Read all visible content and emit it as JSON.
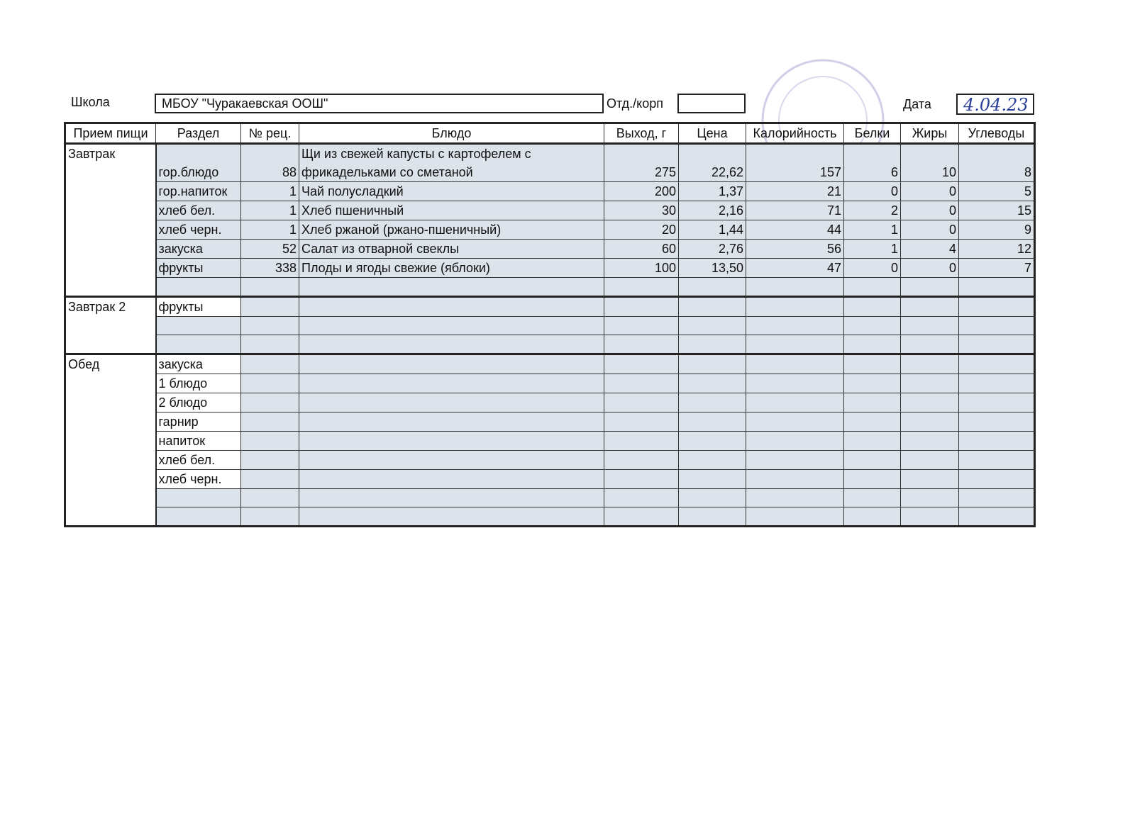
{
  "header": {
    "school_label": "Школа",
    "school": "МБОУ \"Чуракаевская ООШ\"",
    "branch_label": "Отд./корп",
    "date_label": "Дата",
    "date": "4.04.23"
  },
  "table": {
    "columns": [
      "Прием пищи",
      "Раздел",
      "№ рец.",
      "Блюдо",
      "Выход, г",
      "Цена",
      "Калорийность",
      "Белки",
      "Жиры",
      "Углеводы"
    ],
    "groups": [
      {
        "meal": "Завтрак",
        "rows": [
          [
            "гор.блюдо",
            "88",
            "Щи из свежей капусты с картофелем с фрикадельками со сметаной",
            "275",
            "22,62",
            "157",
            "6",
            "10",
            "8"
          ],
          [
            "гор.напиток",
            "1",
            "Чай полусладкий",
            "200",
            "1,37",
            "21",
            "0",
            "0",
            "5"
          ],
          [
            "хлеб бел.",
            "1",
            "Хлеб пшеничный",
            "30",
            "2,16",
            "71",
            "2",
            "0",
            "15"
          ],
          [
            "хлеб черн.",
            "1",
            "Хлеб ржаной (ржано-пшеничный)",
            "20",
            "1,44",
            "44",
            "1",
            "0",
            "9"
          ],
          [
            "закуска",
            "52",
            "Салат из отварной свеклы",
            "60",
            "2,76",
            "56",
            "1",
            "4",
            "12"
          ],
          [
            "фрукты",
            "338",
            "Плоды и ягоды свежие (яблоки)",
            "100",
            "13,50",
            "47",
            "0",
            "0",
            "7"
          ],
          [
            null,
            null,
            null,
            null,
            null,
            null,
            null,
            null,
            null
          ]
        ]
      },
      {
        "meal": "Завтрак 2",
        "rows": [
          [
            "фрукты",
            null,
            null,
            null,
            null,
            null,
            null,
            null,
            null
          ],
          [
            null,
            null,
            null,
            null,
            null,
            null,
            null,
            null,
            null
          ],
          [
            null,
            null,
            null,
            null,
            null,
            null,
            null,
            null,
            null
          ]
        ]
      },
      {
        "meal": "Обед",
        "rows": [
          [
            "закуска",
            null,
            null,
            null,
            null,
            null,
            null,
            null,
            null
          ],
          [
            "1 блюдо",
            null,
            null,
            null,
            null,
            null,
            null,
            null,
            null
          ],
          [
            "2 блюдо",
            null,
            null,
            null,
            null,
            null,
            null,
            null,
            null
          ],
          [
            "гарнир",
            null,
            null,
            null,
            null,
            null,
            null,
            null,
            null
          ],
          [
            "напиток",
            null,
            null,
            null,
            null,
            null,
            null,
            null,
            null
          ],
          [
            "хлеб бел.",
            null,
            null,
            null,
            null,
            null,
            null,
            null,
            null
          ],
          [
            "хлеб черн.",
            null,
            null,
            null,
            null,
            null,
            null,
            null,
            null
          ],
          [
            null,
            null,
            null,
            null,
            null,
            null,
            null,
            null,
            null
          ],
          [
            null,
            null,
            null,
            null,
            null,
            null,
            null,
            null,
            null
          ]
        ]
      }
    ]
  }
}
